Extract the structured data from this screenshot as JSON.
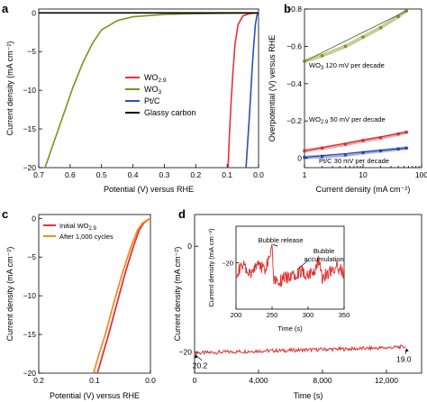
{
  "chart_data": [
    {
      "id": "a",
      "panel_label": "a",
      "type": "line",
      "xlabel": "Potential (V) versus RHE",
      "ylabel": "Current density (mA cm⁻²)",
      "xlim": [
        0.7,
        0.0
      ],
      "ylim": [
        -20,
        0.5
      ],
      "xticks": [
        0.7,
        0.6,
        0.5,
        0.4,
        0.3,
        0.2,
        0.1,
        0.0
      ],
      "xtick_labels": [
        "0.7",
        "0.6",
        "0.5",
        "0.4",
        "0.3",
        "0.2",
        "0.1",
        "0.0"
      ],
      "yticks": [
        0,
        -5,
        -10,
        -15,
        -20
      ],
      "ytick_labels": [
        "0",
        "−5",
        "−10",
        "−15",
        "−20"
      ],
      "legend_position": "center-right",
      "series": [
        {
          "name": "WO₂.₉",
          "legend_main": "WO",
          "legend_sub": "2.9",
          "color": "#e8303a",
          "x": [
            0.0,
            0.03,
            0.05,
            0.065,
            0.075,
            0.082,
            0.088,
            0.093,
            0.097
          ],
          "y": [
            0,
            -0.1,
            -0.4,
            -1.5,
            -4,
            -8,
            -12,
            -16,
            -20
          ]
        },
        {
          "name": "WO₃",
          "legend_main": "WO",
          "legend_sub": "3",
          "color": "#8a8a1e",
          "x": [
            0.0,
            0.1,
            0.2,
            0.3,
            0.4,
            0.45,
            0.5,
            0.53,
            0.56,
            0.59,
            0.62,
            0.65,
            0.68
          ],
          "y": [
            0,
            -0.05,
            -0.1,
            -0.2,
            -0.5,
            -1.0,
            -2.2,
            -4,
            -6.5,
            -9.5,
            -13,
            -16.5,
            -20
          ]
        },
        {
          "name": "Pt/C",
          "legend_main": "Pt/C",
          "legend_sub": "",
          "color": "#2a4fb8",
          "x": [
            0.0,
            0.005,
            0.01,
            0.015,
            0.02,
            0.025,
            0.03,
            0.035,
            0.04
          ],
          "y": [
            0,
            -0.3,
            -1.5,
            -4,
            -7,
            -10.5,
            -14,
            -17,
            -20
          ]
        },
        {
          "name": "Glassy carbon",
          "legend_main": "Glassy carbon",
          "legend_sub": "",
          "color": "#000000",
          "x": [
            0.7,
            0.0
          ],
          "y": [
            0,
            0
          ]
        }
      ]
    },
    {
      "id": "b",
      "panel_label": "b",
      "type": "scatter",
      "xlabel": "Current density (mA cm⁻²)",
      "ylabel": "Overpotential (V) versus RHE",
      "xscale": "log",
      "xlim": [
        1,
        100
      ],
      "ylim": [
        0.05,
        -0.8
      ],
      "xticks": [
        1,
        10,
        100
      ],
      "xtick_labels": [
        "1",
        "10",
        "100"
      ],
      "yticks": [
        -0.8,
        -0.6,
        -0.4,
        -0.2,
        0
      ],
      "ytick_labels": [
        "−0.8",
        "−0.6",
        "−0.4",
        "−0.2",
        "0"
      ],
      "annotations": [
        {
          "label": "wo3",
          "main": "WO",
          "sub": "3",
          "rest": " 120  mV per decade"
        },
        {
          "label": "wo29",
          "main": "WO",
          "sub": "2.9",
          "rest": " 50 mV per decade"
        },
        {
          "label": "ptc",
          "main": "Pt/C 30 mV per decade",
          "sub": "",
          "rest": ""
        }
      ],
      "series": [
        {
          "name": "WO₃",
          "color": "#8a8a1e",
          "fit_color": "#3a7a2a",
          "slope_mV_per_decade": 120,
          "x": [
            1,
            2,
            5,
            10,
            20,
            40,
            55
          ],
          "y": [
            -0.52,
            -0.55,
            -0.6,
            -0.65,
            -0.7,
            -0.76,
            -0.79
          ]
        },
        {
          "name": "WO₂.₉",
          "color": "#e8303a",
          "fit_color": "#b02020",
          "slope_mV_per_decade": 50,
          "x": [
            1,
            2,
            5,
            10,
            20,
            40,
            55
          ],
          "y": [
            -0.04,
            -0.055,
            -0.075,
            -0.095,
            -0.11,
            -0.13,
            -0.14
          ]
        },
        {
          "name": "Pt/C",
          "color": "#2a4fb8",
          "fit_color": "#1a2f8a",
          "slope_mV_per_decade": 30,
          "x": [
            1,
            2,
            5,
            10,
            20,
            40,
            55
          ],
          "y": [
            -0.005,
            -0.01,
            -0.018,
            -0.03,
            -0.04,
            -0.05,
            -0.055
          ]
        }
      ]
    },
    {
      "id": "c",
      "panel_label": "c",
      "type": "line",
      "xlabel": "Potential (V) versus RHE",
      "ylabel": "Current density (mA cm⁻²)",
      "xlim": [
        0.2,
        0.0
      ],
      "ylim": [
        -20,
        0.5
      ],
      "xticks": [
        0.2,
        0.1,
        0.0
      ],
      "xtick_labels": [
        "0.2",
        "0.1",
        "0.0"
      ],
      "yticks": [
        0,
        -5,
        -10,
        -15,
        -20
      ],
      "ytick_labels": [
        "0",
        "−5",
        "−10",
        "−15",
        "−20"
      ],
      "legend_position": "top-left",
      "series": [
        {
          "name": "Initial WO₂.₉",
          "legend_main": "Initial WO",
          "legend_sub": "2.9",
          "color": "#e8303a",
          "x": [
            0.0,
            0.005,
            0.012,
            0.02,
            0.03,
            0.045,
            0.06,
            0.075,
            0.085,
            0.095
          ],
          "y": [
            0,
            -0.2,
            -0.6,
            -1.5,
            -3.5,
            -7,
            -11,
            -15,
            -17.5,
            -20
          ]
        },
        {
          "name": "After 1,000 cycles",
          "legend_main": "After 1,000 cycles",
          "legend_sub": "",
          "color": "#f09020",
          "x": [
            0.0,
            0.006,
            0.014,
            0.023,
            0.034,
            0.05,
            0.066,
            0.081,
            0.092,
            0.102
          ],
          "y": [
            0,
            -0.2,
            -0.6,
            -1.5,
            -3.5,
            -7,
            -11,
            -15,
            -17.5,
            -20
          ]
        }
      ]
    },
    {
      "id": "d",
      "panel_label": "d",
      "type": "line",
      "xlabel": "Time (s)",
      "ylabel": "Current density (mA cm⁻²)",
      "xlim": [
        0,
        14200
      ],
      "ylim": [
        -24,
        6
      ],
      "xticks": [
        0,
        4000,
        8000,
        12000
      ],
      "xtick_labels": [
        "0",
        "4,000",
        "8,000",
        "12,000"
      ],
      "yticks": [
        0,
        -20
      ],
      "ytick_labels": [
        "0",
        "−20"
      ],
      "annotations": [
        {
          "label": "start",
          "text": "20.2",
          "x": 0,
          "y": -20.2
        },
        {
          "label": "end",
          "text": "19.0",
          "x": 13200,
          "y": -19.0
        }
      ],
      "series": [
        {
          "name": "Current density",
          "color": "#e03030",
          "x": [
            0,
            2000,
            4000,
            6000,
            8000,
            10000,
            12000,
            13200
          ],
          "y": [
            -20.2,
            -20.0,
            -19.8,
            -19.7,
            -19.5,
            -19.4,
            -19.2,
            -19.0
          ]
        }
      ],
      "inset": {
        "xlabel": "Time (s)",
        "ylabel": "Current density (mA cm⁻²)",
        "xlim": [
          200,
          350
        ],
        "ylim": [
          -22.8,
          -17.8
        ],
        "xticks": [
          200,
          250,
          300,
          350
        ],
        "xtick_labels": [
          "200",
          "250",
          "300",
          "350"
        ],
        "yticks": [
          -20
        ],
        "ytick_labels": [
          "−20"
        ],
        "annotations": [
          {
            "label": "release",
            "text": "Bubble release"
          },
          {
            "label": "accum1",
            "text": "Bubble"
          },
          {
            "label": "accum2",
            "text": "accumulation"
          }
        ],
        "series": [
          {
            "name": "Current density",
            "color": "#e03030",
            "x": [
              200,
              210,
              220,
              230,
              240,
              248,
              250,
              252,
              260,
              270,
              280,
              290,
              300,
              310,
              315,
              320,
              330,
              340,
              350
            ],
            "y": [
              -20.6,
              -20.2,
              -20.8,
              -20.0,
              -20.4,
              -19.4,
              -18.6,
              -20.9,
              -21.1,
              -20.9,
              -20.7,
              -20.5,
              -20.7,
              -20.4,
              -19.8,
              -20.9,
              -20.5,
              -20.3,
              -20.6
            ]
          }
        ]
      }
    }
  ]
}
